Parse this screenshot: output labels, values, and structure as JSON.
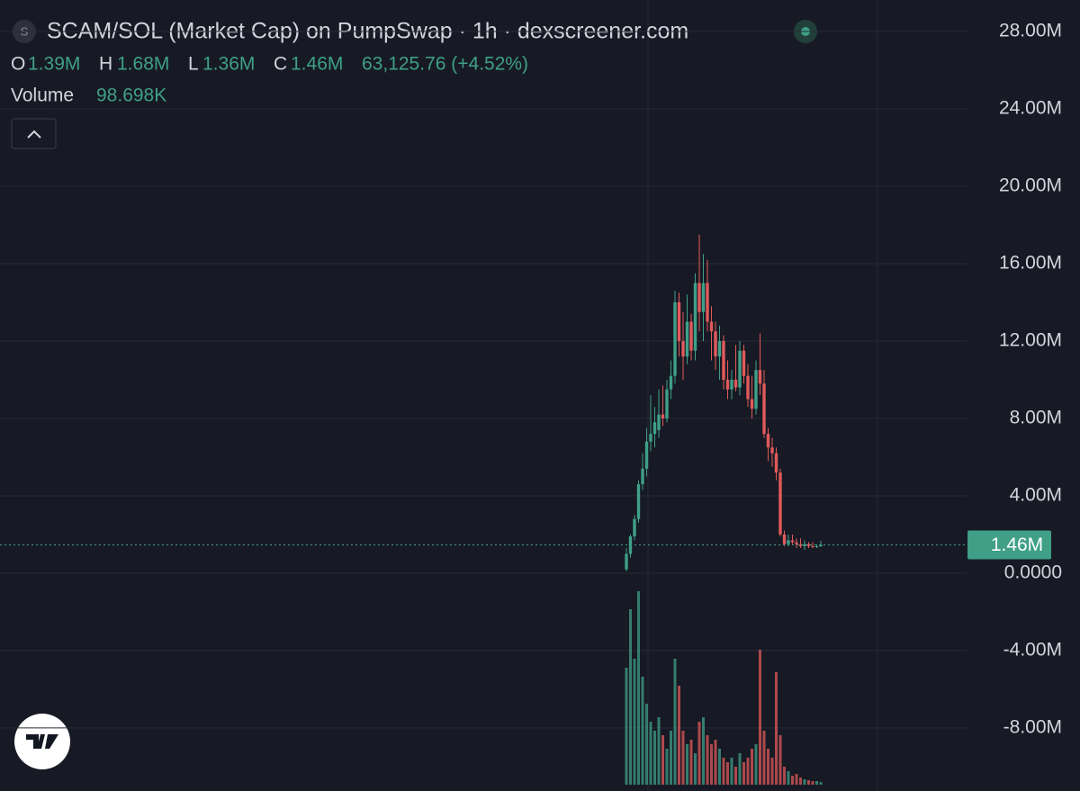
{
  "chart_data": {
    "type": "candlestick",
    "title": "SCAM/SOL (Market Cap) on PumpSwap · 1h · dexscreener.com",
    "symbol_icon": "S",
    "readout": {
      "o_label": "O",
      "o": "1.39M",
      "h_label": "H",
      "h": "1.68M",
      "l_label": "L",
      "l": "1.36M",
      "c_label": "C",
      "c": "1.46M",
      "change": "63,125.76 (+4.52%)",
      "volume_label": "Volume",
      "volume": "98.698K"
    },
    "up_color": "#3f9f87",
    "down_color": "#e05a5a",
    "open": [
      0.2,
      1.0,
      1.9,
      2.8,
      4.6,
      5.4,
      6.8,
      7.2,
      7.4,
      8.2,
      8.0,
      9.5,
      10.2,
      14.0,
      12.0,
      11.2,
      13.0,
      11.5,
      15.0,
      13.5,
      15.0,
      13.0,
      12.5,
      11.2,
      12.0,
      10.0,
      9.5,
      10.0,
      9.6,
      11.5,
      10.2,
      9.0,
      8.5,
      10.5,
      9.8,
      7.2,
      6.5,
      6.2,
      5.2,
      2.0,
      1.5,
      1.7,
      1.6,
      1.5,
      1.4,
      1.5,
      1.4,
      1.35,
      1.39
    ],
    "high": [
      1.3,
      2.0,
      3.0,
      4.8,
      6.2,
      7.5,
      9.2,
      8.6,
      9.5,
      9.7,
      10.0,
      11.0,
      14.6,
      14.5,
      13.5,
      14.4,
      13.4,
      15.5,
      17.5,
      16.5,
      16.2,
      13.8,
      13.0,
      12.8,
      12.3,
      11.0,
      10.5,
      11.8,
      12.0,
      11.8,
      10.8,
      10.2,
      11.0,
      12.4,
      10.5,
      7.5,
      7.0,
      6.5,
      5.4,
      2.2,
      2.0,
      2.0,
      1.8,
      1.8,
      1.7,
      1.6,
      1.6,
      1.5,
      1.68
    ],
    "low": [
      0.1,
      0.8,
      1.7,
      2.6,
      4.3,
      5.0,
      6.3,
      6.5,
      7.0,
      7.6,
      7.8,
      9.0,
      9.8,
      11.2,
      10.0,
      10.8,
      11.0,
      11.0,
      12.5,
      12.0,
      12.5,
      11.0,
      10.5,
      10.0,
      9.5,
      9.0,
      9.0,
      9.4,
      9.2,
      9.8,
      8.6,
      8.0,
      8.2,
      9.2,
      7.0,
      5.8,
      5.5,
      4.8,
      1.9,
      1.4,
      1.4,
      1.5,
      1.3,
      1.3,
      1.2,
      1.3,
      1.3,
      1.3,
      1.36
    ],
    "close": [
      1.0,
      1.9,
      2.8,
      4.6,
      5.4,
      6.8,
      7.2,
      7.8,
      8.2,
      8.0,
      9.5,
      10.2,
      14.0,
      12.0,
      11.2,
      13.0,
      11.5,
      15.0,
      13.5,
      15.0,
      13.0,
      12.5,
      11.2,
      12.0,
      10.0,
      9.5,
      10.0,
      9.6,
      11.5,
      10.2,
      9.0,
      8.5,
      10.5,
      9.8,
      7.2,
      6.5,
      6.2,
      5.2,
      2.0,
      1.5,
      1.7,
      1.6,
      1.5,
      1.4,
      1.5,
      1.4,
      1.35,
      1.39,
      1.46
    ],
    "volume": [
      4290000,
      6435000,
      4620000,
      7095000,
      3960000,
      2970000,
      2310000,
      1980000,
      2475000,
      1815000,
      1320000,
      1980000,
      4620000,
      3630000,
      1980000,
      1485000,
      1650000,
      1155000,
      2310000,
      2475000,
      1815000,
      1485000,
      1650000,
      1320000,
      990000,
      825000,
      990000,
      660000,
      1155000,
      825000,
      990000,
      1320000,
      1485000,
      4950000,
      1980000,
      1320000,
      990000,
      4125000,
      1815000,
      660000,
      495000,
      330000,
      396000,
      264000,
      198000,
      165000,
      132000,
      132000,
      98698
    ],
    "ylim": [
      -11.26,
      29.63
    ],
    "yticks": [
      {
        "value": 28,
        "label": "28.00M"
      },
      {
        "value": 24,
        "label": "24.00M"
      },
      {
        "value": 20,
        "label": "20.00M"
      },
      {
        "value": 16,
        "label": "16.00M"
      },
      {
        "value": 12,
        "label": "12.00M"
      },
      {
        "value": 8,
        "label": "8.00M"
      },
      {
        "value": 4,
        "label": "4.00M"
      },
      {
        "value": 0,
        "label": "0.0000"
      },
      {
        "value": -4,
        "label": "-4.00M"
      },
      {
        "value": -8,
        "label": "-8.00M"
      }
    ],
    "last_price": {
      "value": 1.46,
      "label": "1.46M"
    },
    "grid": true
  }
}
